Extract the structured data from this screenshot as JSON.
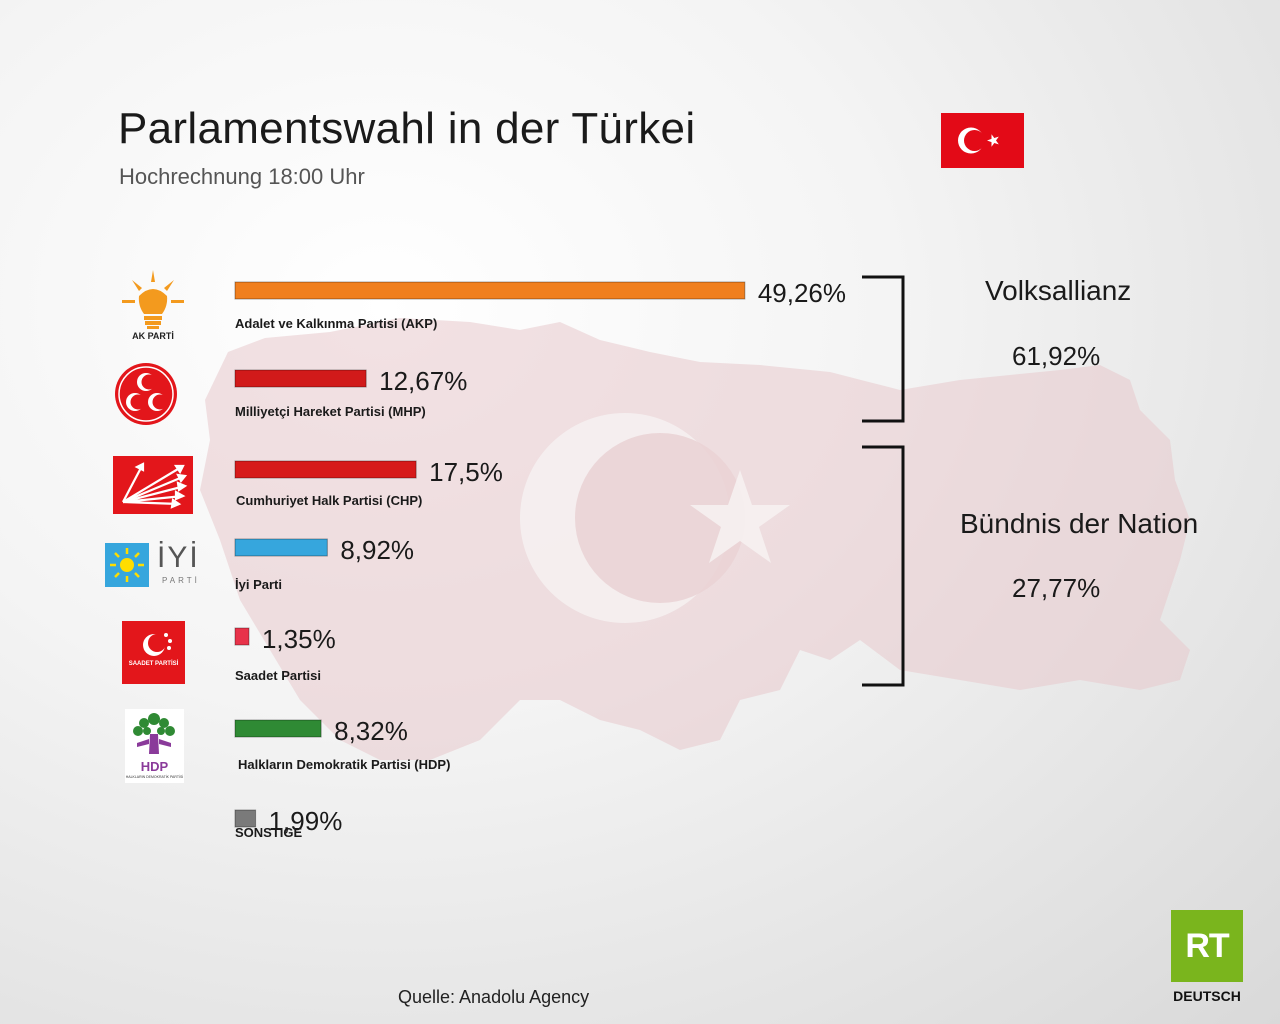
{
  "title": "Parlamentswahl in der Türkei",
  "subtitle": "Hochrechnung 18:00 Uhr",
  "source": "Quelle: Anadolu Agency",
  "brand": {
    "name": "RT",
    "sub": "DEUTSCH",
    "color": "#7ab51d"
  },
  "alliances": [
    {
      "name": "Volksallianz",
      "value": "61,92%"
    },
    {
      "name": "Bündnis der Nation",
      "value": "27,77%"
    }
  ],
  "logos": {
    "akp": {
      "icon": "lightbulb-icon",
      "text": "AK PARTİ"
    },
    "mhp": {
      "icon": "three-crescents-icon"
    },
    "chp": {
      "icon": "six-arrows-icon"
    },
    "iyi": {
      "icon": "sun-icon",
      "text": "İYİ",
      "subtext": "PARTİ"
    },
    "saadet": {
      "icon": "crescent-stars-icon",
      "text": "SAADET PARTİSİ"
    },
    "hdp": {
      "icon": "tree-icon",
      "text": "HDP",
      "subtext": "HALKLARIN DEMOKRATİK PARTİSİ"
    }
  },
  "chart_data": {
    "type": "bar",
    "title": "Parlamentswahl in der Türkei",
    "subtitle": "Hochrechnung 18:00 Uhr",
    "orientation": "horizontal",
    "categories": [
      "Adalet ve Kalkınma Partisi (AKP)",
      "Milliyetçi Hareket Partisi (MHP)",
      "Cumhuriyet Halk Partisi (CHP)",
      "İyi Parti",
      "Saadet Partisi",
      "Halkların Demokratik Partisi (HDP)",
      "SONSTIGE"
    ],
    "values": [
      49.26,
      12.67,
      17.5,
      8.92,
      1.35,
      8.32,
      1.99
    ],
    "value_labels": [
      "49,26%",
      "12,67%",
      "17,5%",
      "8,92%",
      "1,35%",
      "8,32%",
      "1,99%"
    ],
    "colors": [
      "#f07f1e",
      "#d11a1a",
      "#d61a1a",
      "#36a6dd",
      "#e8334a",
      "#2f8a34",
      "#7a7a7a"
    ],
    "unit": "%",
    "grid": false
  }
}
